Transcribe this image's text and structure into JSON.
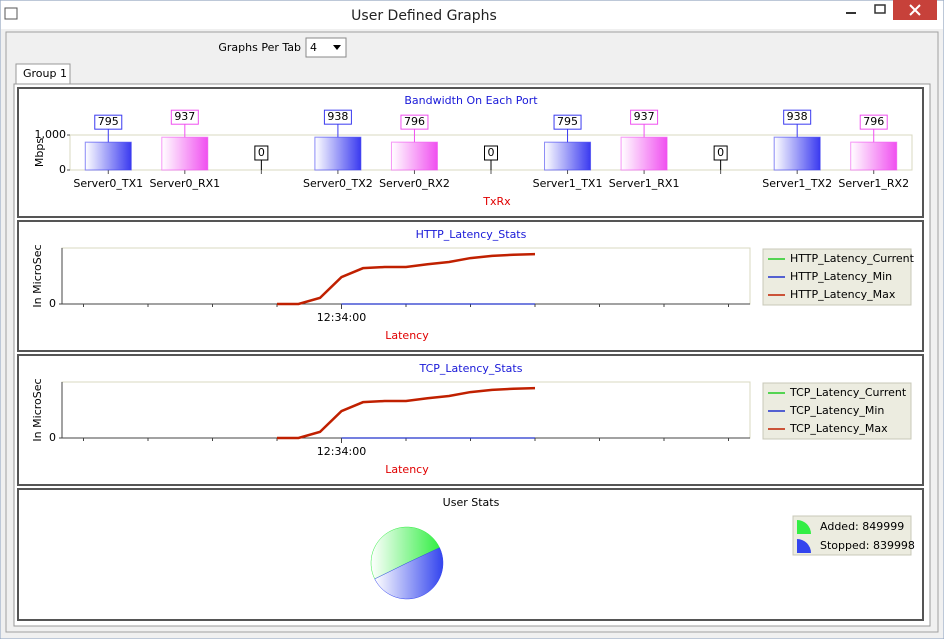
{
  "window": {
    "title": "User Defined Graphs",
    "graphs_per_tab_label": "Graphs Per Tab",
    "graphs_per_tab_value": "4",
    "tab": "Group 1"
  },
  "chart_data": [
    {
      "type": "bar",
      "title": "Bandwidth On Each Port",
      "ylabel": "Mbps",
      "xlabel": "TxRx",
      "categories": [
        "Server0_TX1",
        "Server0_RX1",
        null,
        "Server0_TX2",
        "Server0_RX2",
        null,
        "Server1_TX1",
        "Server1_RX1",
        null,
        "Server1_TX2",
        "Server1_RX2"
      ],
      "values": [
        795,
        937,
        0,
        938,
        796,
        0,
        795,
        937,
        0,
        938,
        796
      ],
      "colors": [
        "#3a3af0",
        "#f050f0",
        "#000000",
        "#3a3af0",
        "#f050f0",
        "#000000",
        "#3a3af0",
        "#f050f0",
        "#000000",
        "#3a3af0",
        "#f050f0"
      ],
      "ylim": [
        0,
        1000
      ],
      "yticks": [
        0,
        {
          "value": 1000,
          "label": "1,000"
        }
      ]
    },
    {
      "type": "line",
      "title": "HTTP_Latency_Stats",
      "ylabel": "In MicroSec",
      "xlabel": "Latency",
      "categories": [
        null,
        null,
        null,
        null,
        null,
        null,
        null,
        null,
        null,
        null,
        null,
        null,
        null,
        "12:34:00",
        null,
        null,
        null,
        null,
        null,
        null,
        null,
        null,
        null,
        null,
        null,
        null,
        null,
        null,
        null,
        null,
        null,
        null
      ],
      "series": [
        {
          "name": "HTTP_Latency_Current",
          "color": "#22cc22",
          "values": [
            null,
            null,
            null,
            null,
            null,
            null,
            null,
            null,
            null,
            null,
            null,
            null,
            null,
            null,
            null,
            null,
            null,
            null,
            null,
            null,
            null,
            null,
            null,
            null,
            null,
            null,
            null,
            null,
            null,
            null,
            null,
            null
          ]
        },
        {
          "name": "HTTP_Latency_Min",
          "color": "#2233cc",
          "values": [
            null,
            null,
            null,
            null,
            null,
            null,
            null,
            null,
            null,
            null,
            null,
            null,
            null,
            0,
            0,
            0,
            0,
            0,
            0,
            0,
            0,
            0,
            0,
            null,
            null,
            null,
            null,
            null,
            null,
            null,
            null,
            null
          ]
        },
        {
          "name": "HTTP_Latency_Max",
          "color": "#c02000",
          "values": [
            null,
            null,
            null,
            null,
            null,
            null,
            null,
            null,
            null,
            null,
            0,
            0,
            11,
            48,
            64,
            66,
            66,
            71,
            75,
            82,
            86,
            88,
            89,
            null,
            null,
            null,
            null,
            null,
            null,
            null,
            null,
            null
          ]
        }
      ],
      "ylim": [
        0,
        100
      ],
      "yticks": [
        0
      ]
    },
    {
      "type": "line",
      "title": "TCP_Latency_Stats",
      "ylabel": "In MicroSec",
      "xlabel": "Latency",
      "categories": [
        null,
        null,
        null,
        null,
        null,
        null,
        null,
        null,
        null,
        null,
        null,
        null,
        null,
        "12:34:00",
        null,
        null,
        null,
        null,
        null,
        null,
        null,
        null,
        null,
        null,
        null,
        null,
        null,
        null,
        null,
        null,
        null,
        null
      ],
      "series": [
        {
          "name": "TCP_Latency_Current",
          "color": "#22cc22",
          "values": [
            null,
            null,
            null,
            null,
            null,
            null,
            null,
            null,
            null,
            null,
            null,
            null,
            null,
            null,
            null,
            null,
            null,
            null,
            null,
            null,
            null,
            null,
            null,
            null,
            null,
            null,
            null,
            null,
            null,
            null,
            null,
            null
          ]
        },
        {
          "name": "TCP_Latency_Min",
          "color": "#2233cc",
          "values": [
            null,
            null,
            null,
            null,
            null,
            null,
            null,
            null,
            null,
            null,
            null,
            null,
            null,
            0,
            0,
            0,
            0,
            0,
            0,
            0,
            0,
            0,
            0,
            null,
            null,
            null,
            null,
            null,
            null,
            null,
            null,
            null
          ]
        },
        {
          "name": "TCP_Latency_Max",
          "color": "#c02000",
          "values": [
            null,
            null,
            null,
            null,
            null,
            null,
            null,
            null,
            null,
            null,
            0,
            0,
            11,
            48,
            64,
            66,
            66,
            71,
            75,
            82,
            86,
            88,
            89,
            null,
            null,
            null,
            null,
            null,
            null,
            null,
            null,
            null
          ]
        }
      ],
      "ylim": [
        0,
        100
      ],
      "yticks": [
        0
      ]
    },
    {
      "type": "pie",
      "title": "User Stats",
      "values": [
        849999,
        839998
      ],
      "value_labels": [
        "Added: 849999",
        "Stopped: 839998"
      ],
      "colors": [
        "#33ee44",
        "#3344ee"
      ]
    }
  ]
}
